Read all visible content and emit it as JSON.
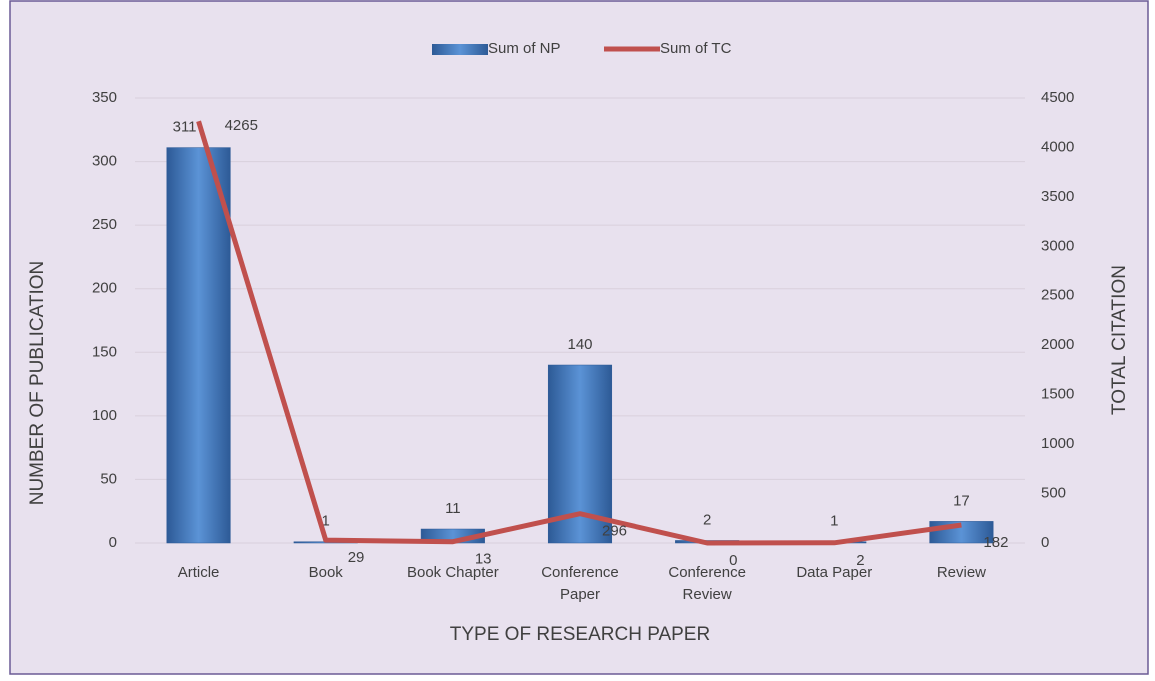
{
  "chart_data": {
    "type": "bar",
    "categories": [
      "Article",
      "Book",
      "Book Chapter",
      "Conference Paper",
      "Conference Review",
      "Data Paper",
      "Review"
    ],
    "series": [
      {
        "name": "Sum of NP",
        "type": "bar",
        "color": "#4a7fc1",
        "values": [
          311,
          1,
          11,
          140,
          2,
          1,
          17
        ]
      },
      {
        "name": "Sum of TC",
        "type": "line",
        "axis": "y2",
        "color": "#c0504d",
        "values": [
          4265,
          29,
          13,
          296,
          0,
          2,
          182
        ]
      }
    ],
    "ylim": [
      0,
      350
    ],
    "yticks": [
      0,
      50,
      100,
      150,
      200,
      250,
      300,
      350
    ],
    "y2lim": [
      0,
      4500
    ],
    "y2ticks": [
      0,
      500,
      1000,
      1500,
      2000,
      2500,
      3000,
      3500,
      4000,
      4500
    ],
    "y_label": "NUMBER OF PUBLICATION",
    "y2_label": "TOTAL CITATION",
    "x_label": "TYPE OF RESEARCH PAPER",
    "grid": true,
    "legend": "top"
  }
}
